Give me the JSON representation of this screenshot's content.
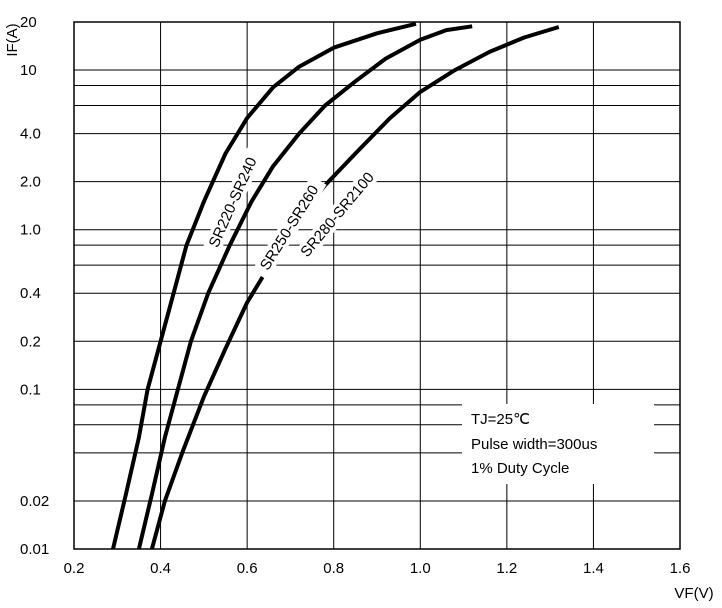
{
  "chart_data": {
    "type": "line",
    "title": "",
    "xlabel": "VF(V)",
    "ylabel": "IF(A)",
    "xlim": [
      0.2,
      1.6
    ],
    "ylim": [
      0.01,
      20
    ],
    "y_scale": "log",
    "grid": true,
    "x_ticks": [
      "0.2",
      "0.4",
      "0.6",
      "0.8",
      "1.0",
      "1.2",
      "1.4",
      "1.6"
    ],
    "y_ticks": [
      {
        "value": 0.01,
        "label": "0.01"
      },
      {
        "value": 0.02,
        "label": "0.02"
      },
      {
        "value": 0.1,
        "label": "0.1"
      },
      {
        "value": 0.2,
        "label": "0.2"
      },
      {
        "value": 0.4,
        "label": "0.4"
      },
      {
        "value": 1,
        "label": "1.0"
      },
      {
        "value": 2,
        "label": "2.0"
      },
      {
        "value": 4,
        "label": "4.0"
      },
      {
        "value": 10,
        "label": "10"
      },
      {
        "value": 20,
        "label": "20"
      }
    ],
    "series": [
      {
        "name": "SR220-SR240",
        "x": [
          0.29,
          0.32,
          0.35,
          0.37,
          0.4,
          0.43,
          0.46,
          0.5,
          0.55,
          0.6,
          0.66,
          0.72,
          0.8,
          0.9,
          0.99
        ],
        "y": [
          0.01,
          0.022,
          0.05,
          0.1,
          0.2,
          0.4,
          0.8,
          1.5,
          3.0,
          5.0,
          7.8,
          10.5,
          13.8,
          17.0,
          19.5
        ]
      },
      {
        "name": "SR250-SR260",
        "x": [
          0.35,
          0.38,
          0.41,
          0.44,
          0.47,
          0.51,
          0.56,
          0.61,
          0.66,
          0.72,
          0.78,
          0.85,
          0.92,
          1.0,
          1.06,
          1.12
        ],
        "y": [
          0.01,
          0.022,
          0.05,
          0.1,
          0.2,
          0.4,
          0.8,
          1.5,
          2.5,
          4.0,
          6.0,
          8.5,
          11.8,
          15.5,
          17.8,
          18.8
        ]
      },
      {
        "name": "SR280-SR2100",
        "x": [
          0.38,
          0.41,
          0.45,
          0.5,
          0.55,
          0.6,
          0.66,
          0.72,
          0.78,
          0.85,
          0.93,
          1.0,
          1.08,
          1.16,
          1.24,
          1.32
        ],
        "y": [
          0.01,
          0.02,
          0.04,
          0.09,
          0.18,
          0.35,
          0.65,
          1.2,
          1.9,
          3.0,
          5.0,
          7.3,
          10.0,
          13.0,
          16.0,
          18.6
        ]
      }
    ],
    "annotations": [
      "TJ=25℃",
      "Pulse width=300us",
      "1% Duty Cycle"
    ]
  }
}
